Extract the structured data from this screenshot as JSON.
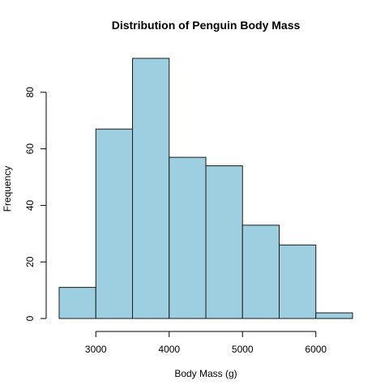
{
  "chart_data": {
    "type": "bar",
    "title": "Distribution of Penguin Body Mass",
    "xlabel": "Body Mass (g)",
    "ylabel": "Frequency",
    "bins": [
      {
        "start": 2500,
        "end": 3000,
        "count": 11
      },
      {
        "start": 3000,
        "end": 3500,
        "count": 67
      },
      {
        "start": 3500,
        "end": 4000,
        "count": 92
      },
      {
        "start": 4000,
        "end": 4500,
        "count": 57
      },
      {
        "start": 4500,
        "end": 5000,
        "count": 54
      },
      {
        "start": 5000,
        "end": 5500,
        "count": 33
      },
      {
        "start": 5500,
        "end": 6000,
        "count": 26
      },
      {
        "start": 6000,
        "end": 6500,
        "count": 2
      }
    ],
    "x_ticks": [
      "3000",
      "4000",
      "5000",
      "6000"
    ],
    "y_ticks": [
      "0",
      "20",
      "40",
      "60",
      "80"
    ],
    "xlim": [
      2500,
      6500
    ],
    "ylim": [
      0,
      92
    ],
    "bar_color": "#9ecfe0",
    "edge_color": "#1a1a1a",
    "grid": false,
    "legend": "none"
  }
}
